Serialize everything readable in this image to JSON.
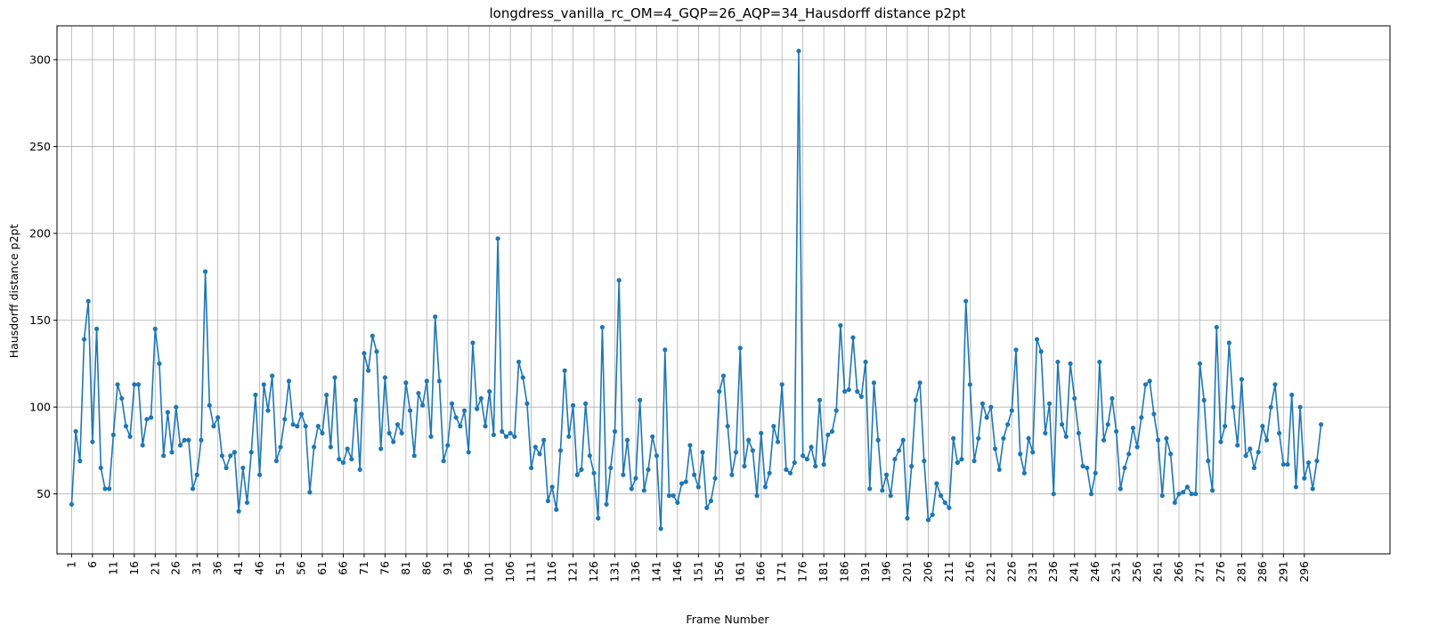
{
  "chart_data": {
    "type": "line",
    "title": "longdress_vanilla_rc_OM=4_GQP=26_AQP=34_Hausdorff distance p2pt",
    "xlabel": "Frame Number",
    "ylabel": "Hausdorff distance p2pt",
    "xlim": [
      -2.5,
      316.5
    ],
    "ylim": [
      15.5,
      319.5
    ],
    "x_ticks": [
      1,
      6,
      11,
      16,
      21,
      26,
      31,
      36,
      41,
      46,
      51,
      56,
      61,
      66,
      71,
      76,
      81,
      86,
      91,
      96,
      101,
      106,
      111,
      116,
      121,
      126,
      131,
      136,
      141,
      146,
      151,
      156,
      161,
      166,
      171,
      176,
      181,
      186,
      191,
      196,
      201,
      206,
      211,
      216,
      221,
      226,
      231,
      236,
      241,
      246,
      251,
      256,
      261,
      266,
      271,
      276,
      281,
      286,
      291,
      296
    ],
    "y_ticks": [
      50,
      100,
      150,
      200,
      250,
      300
    ],
    "grid": true,
    "marker": "circle",
    "color": "#1f77b4",
    "series": [
      {
        "x_start": 1,
        "values": [
          44,
          86,
          69,
          139,
          161,
          80,
          145,
          65,
          53,
          53,
          84,
          113,
          105,
          89,
          83,
          113,
          113,
          78,
          93,
          94,
          145,
          125,
          72,
          97,
          74,
          100,
          78,
          81,
          81,
          53,
          61,
          81,
          178,
          101,
          89,
          94,
          72,
          65,
          72,
          74,
          40,
          65,
          45,
          74,
          107,
          61,
          113,
          98,
          118,
          69,
          77,
          93,
          115,
          90,
          89,
          96,
          89,
          51,
          77,
          89,
          85,
          107,
          77,
          117,
          70,
          68,
          76,
          70,
          104,
          64,
          131,
          121,
          141,
          132,
          76,
          117,
          85,
          80,
          90,
          85,
          114,
          98,
          72,
          108,
          101,
          115,
          83,
          152,
          115,
          69,
          78,
          102,
          94,
          89,
          98,
          74,
          137,
          99,
          105,
          89,
          109,
          84,
          197,
          86,
          83,
          85,
          83,
          126,
          117,
          102,
          65,
          77,
          73,
          81,
          46,
          54,
          41,
          75,
          121,
          83,
          101,
          61,
          64,
          102,
          72,
          62,
          36,
          146,
          44,
          65,
          86,
          173,
          61,
          81,
          53,
          59,
          104,
          52,
          64,
          83,
          72,
          30,
          133,
          49,
          49,
          45,
          56,
          57,
          78,
          61,
          54,
          74,
          42,
          46,
          59,
          109,
          118,
          89,
          61,
          74,
          134,
          66,
          81,
          75,
          49,
          85,
          54,
          62,
          89,
          80,
          113,
          64,
          62,
          68,
          305,
          72,
          70,
          77,
          66,
          104,
          67,
          84,
          86,
          98,
          147,
          109,
          110,
          140,
          109,
          106,
          126,
          53,
          114,
          81,
          52,
          61,
          49,
          70,
          75,
          81,
          36,
          66,
          104,
          114,
          69,
          35,
          38,
          56,
          49,
          45,
          42,
          82,
          68,
          70,
          161,
          113,
          69,
          82,
          102,
          94,
          100,
          76,
          64,
          82,
          90,
          98,
          133,
          73,
          62,
          82,
          74,
          139,
          132,
          85,
          102,
          50,
          126,
          90,
          83,
          125,
          105,
          85,
          66,
          65,
          50,
          62,
          126,
          81,
          90,
          105,
          86,
          53,
          65,
          73,
          88,
          77,
          94,
          113,
          115,
          96,
          81,
          49,
          82,
          73,
          45,
          50,
          51,
          54,
          50,
          50,
          125,
          104,
          69,
          52,
          146,
          80,
          89,
          137,
          100,
          78,
          116,
          72,
          76,
          65,
          74,
          89,
          81,
          100,
          113,
          85,
          67,
          67,
          107,
          54,
          100,
          59,
          68,
          53,
          69,
          90
        ]
      }
    ]
  }
}
